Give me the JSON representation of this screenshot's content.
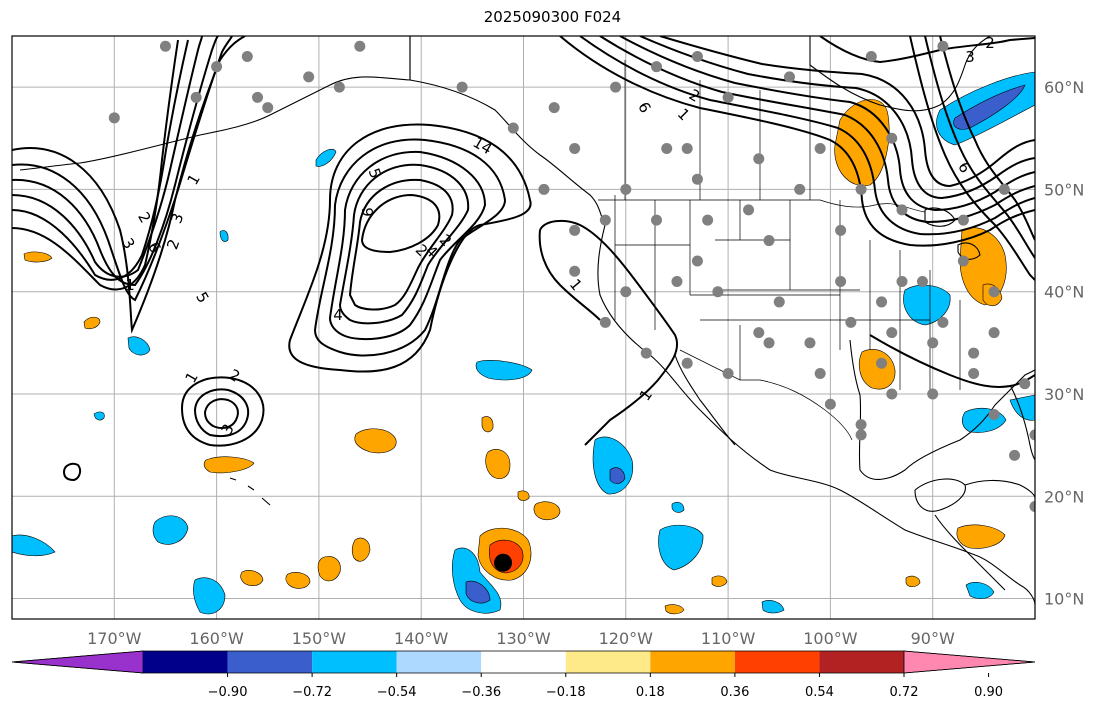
{
  "title": "2025090300 F024",
  "map": {
    "lon_range": [
      -180,
      -80
    ],
    "lat_range": [
      8,
      65
    ],
    "longitude_labels": [
      "170°W",
      "160°W",
      "150°W",
      "140°W",
      "130°W",
      "120°W",
      "110°W",
      "100°W",
      "90°W"
    ],
    "latitude_labels": [
      "10°N",
      "20°N",
      "30°N",
      "40°N",
      "50°N",
      "60°N"
    ],
    "grid": true,
    "contour_labels": [
      "1",
      "2",
      "3",
      "4",
      "5",
      "6",
      "14",
      "2",
      "1",
      "2",
      "3",
      "1",
      "2",
      "3",
      "5",
      "6",
      "1",
      "2",
      "6",
      "3",
      "2",
      "1",
      "1",
      "4",
      "9",
      "2"
    ],
    "storm_marker": {
      "lon": -132,
      "lat": 13.5
    },
    "city_dots": [
      [
        -170,
        57
      ],
      [
        -165,
        64
      ],
      [
        -162,
        59
      ],
      [
        -157,
        63
      ],
      [
        -160,
        62
      ],
      [
        -155,
        58
      ],
      [
        -151,
        61
      ],
      [
        -146,
        64
      ],
      [
        -156,
        59
      ],
      [
        -148,
        60
      ],
      [
        -136,
        60
      ],
      [
        -131,
        56
      ],
      [
        -127,
        58
      ],
      [
        -121,
        60
      ],
      [
        -117,
        62
      ],
      [
        -113,
        63
      ],
      [
        -110,
        59
      ],
      [
        -104,
        61
      ],
      [
        -96,
        63
      ],
      [
        -89,
        64
      ],
      [
        -125,
        54
      ],
      [
        -128,
        50
      ],
      [
        -120,
        50
      ],
      [
        -114,
        54
      ],
      [
        -107,
        53
      ],
      [
        -101,
        54
      ],
      [
        -94,
        55
      ],
      [
        -113,
        51
      ],
      [
        -108,
        48
      ],
      [
        -103,
        50
      ],
      [
        -125,
        46
      ],
      [
        -122,
        47
      ],
      [
        -117,
        47
      ],
      [
        -112,
        47
      ],
      [
        -106,
        45
      ],
      [
        -99,
        46
      ],
      [
        -97,
        50
      ],
      [
        -93,
        48
      ],
      [
        -87,
        47
      ],
      [
        -83,
        50
      ],
      [
        -125,
        42
      ],
      [
        -120,
        40
      ],
      [
        -115,
        41
      ],
      [
        -111,
        40
      ],
      [
        -105,
        39
      ],
      [
        -99,
        41
      ],
      [
        -95,
        39
      ],
      [
        -91,
        41
      ],
      [
        -87,
        43
      ],
      [
        -84,
        40
      ],
      [
        -122,
        37
      ],
      [
        -118,
        34
      ],
      [
        -114,
        33
      ],
      [
        -110,
        32
      ],
      [
        -106,
        35
      ],
      [
        -102,
        35
      ],
      [
        -98,
        37
      ],
      [
        -94,
        36
      ],
      [
        -90,
        35
      ],
      [
        -86,
        34
      ],
      [
        -100,
        29
      ],
      [
        -97,
        27
      ],
      [
        -94,
        30
      ],
      [
        -90,
        30
      ],
      [
        -86,
        32
      ],
      [
        -84,
        28
      ],
      [
        -81,
        31
      ],
      [
        -80,
        26
      ],
      [
        -82,
        24
      ],
      [
        -80,
        19
      ],
      [
        -116,
        54
      ],
      [
        -113,
        43
      ],
      [
        -107,
        36
      ],
      [
        -101,
        32
      ],
      [
        -95,
        33
      ],
      [
        -97,
        26
      ],
      [
        -93,
        41
      ],
      [
        -89,
        37
      ],
      [
        -84,
        36
      ]
    ]
  },
  "colorbar": {
    "ticks": [
      "−0.90",
      "−0.72",
      "−0.54",
      "−0.36",
      "−0.18",
      "0.18",
      "0.36",
      "0.54",
      "0.72",
      "0.90"
    ],
    "colors": [
      "#9932cc",
      "#00008b",
      "#3a5fcd",
      "#00bfff",
      "#add8ff",
      "#ffffff",
      "#ffea8a",
      "#ffa500",
      "#ff4000",
      "#b22222",
      "#ff88b0"
    ]
  },
  "colors": {
    "neg_strong": "#3a5fcd",
    "neg_mid": "#00bfff",
    "pos_mid": "#ffa500",
    "pos_strong": "#ff4000",
    "pos_light": "#ffea8a",
    "grid": "#b0b0b0",
    "dot": "#808080"
  }
}
